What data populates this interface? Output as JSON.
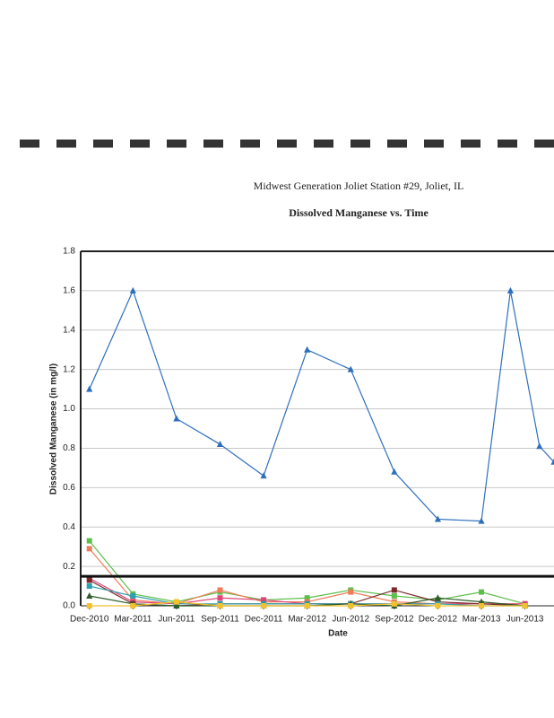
{
  "chart_data": {
    "type": "line",
    "title": "Midwest Generation Joliet Station #29, Joliet, IL",
    "subtitle": "Dissolved Manganese vs. Time",
    "y_label": "Dissolved Manganese (in mg/l)",
    "x_label": "Date",
    "xlim": [
      -0.6,
      32
    ],
    "xticks": [
      {
        "value": 0,
        "label": "Dec-2010"
      },
      {
        "value": 3,
        "label": "Mar-2011"
      },
      {
        "value": 6,
        "label": "Jun-2011"
      },
      {
        "value": 9,
        "label": "Sep-2011"
      },
      {
        "value": 12,
        "label": "Dec-2011"
      },
      {
        "value": 15,
        "label": "Mar-2012"
      },
      {
        "value": 18,
        "label": "Jun-2012"
      },
      {
        "value": 21,
        "label": "Sep-2012"
      },
      {
        "value": 24,
        "label": "Dec-2012"
      },
      {
        "value": 27,
        "label": "Mar-2013"
      },
      {
        "value": 30,
        "label": "Jun-2013"
      }
    ],
    "ylim": [
      0,
      1.8
    ],
    "yticks": [
      {
        "value": 0,
        "label": "0.0"
      },
      0.2,
      0.4,
      0.6,
      0.8,
      {
        "value": 1,
        "label": "1.0"
      },
      1.2,
      1.4,
      1.6,
      1.8
    ],
    "grid": true,
    "reference_line": 0.15,
    "series": [
      {
        "color": "#2e6fbd",
        "marker": "triangle",
        "x": [
          0,
          3,
          6,
          9,
          12,
          15,
          18,
          21,
          24,
          27,
          29,
          31,
          32
        ],
        "values": [
          1.1,
          1.6,
          0.95,
          0.82,
          0.66,
          1.3,
          1.2,
          0.68,
          0.44,
          0.43,
          1.6,
          0.81,
          0.73
        ]
      },
      {
        "color": "#5cbf4a",
        "marker": "square",
        "x": [
          0,
          3,
          6,
          9,
          12,
          15,
          18,
          21,
          24,
          27,
          30
        ],
        "values": [
          0.33,
          0.06,
          0.02,
          0.07,
          0.03,
          0.04,
          0.08,
          0.05,
          0.03,
          0.07,
          0.01
        ]
      },
      {
        "color": "#f07c5a",
        "marker": "square",
        "x": [
          0,
          3,
          6,
          9,
          12,
          15,
          18,
          21,
          24,
          27,
          30
        ],
        "values": [
          0.29,
          0.03,
          0.01,
          0.08,
          0.02,
          0.02,
          0.07,
          0.02,
          0.01,
          0.01,
          0.01
        ]
      },
      {
        "color": "#e0457a",
        "marker": "square",
        "x": [
          0,
          3,
          6,
          9,
          12,
          15,
          18,
          21,
          24,
          27,
          30
        ],
        "values": [
          0.14,
          0.02,
          0.01,
          0.04,
          0.03,
          0.01,
          0.01,
          0.01,
          0.01,
          0.01,
          0.01
        ]
      },
      {
        "color": "#7a2a2a",
        "marker": "square",
        "x": [
          0,
          3,
          6,
          9,
          12,
          15,
          18,
          21,
          24,
          27,
          30
        ],
        "values": [
          0.13,
          0.01,
          0,
          0.01,
          0.01,
          0.01,
          0.01,
          0.08,
          0.02,
          0.01,
          0
        ]
      },
      {
        "color": "#2aa0b0",
        "marker": "square",
        "x": [
          0,
          3,
          6,
          9,
          12,
          15,
          18,
          21,
          24,
          27,
          30
        ],
        "values": [
          0.1,
          0.05,
          0.01,
          0.01,
          0.01,
          0.01,
          0.01,
          0.01,
          0.01,
          0,
          0
        ]
      },
      {
        "color": "#2f5e2a",
        "marker": "triangle",
        "x": [
          0,
          3,
          6,
          9,
          12,
          15,
          18,
          21,
          24,
          27,
          30
        ],
        "values": [
          0.05,
          0.01,
          0,
          0,
          0,
          0,
          0.01,
          0,
          0.04,
          0.02,
          0
        ]
      },
      {
        "color": "#f2c12e",
        "marker": "square",
        "x": [
          0,
          3,
          6,
          9,
          12,
          15,
          18,
          21,
          24,
          27,
          30
        ],
        "values": [
          0,
          0,
          0.02,
          0,
          0,
          0,
          0,
          0.01,
          0,
          0,
          0
        ]
      }
    ]
  }
}
